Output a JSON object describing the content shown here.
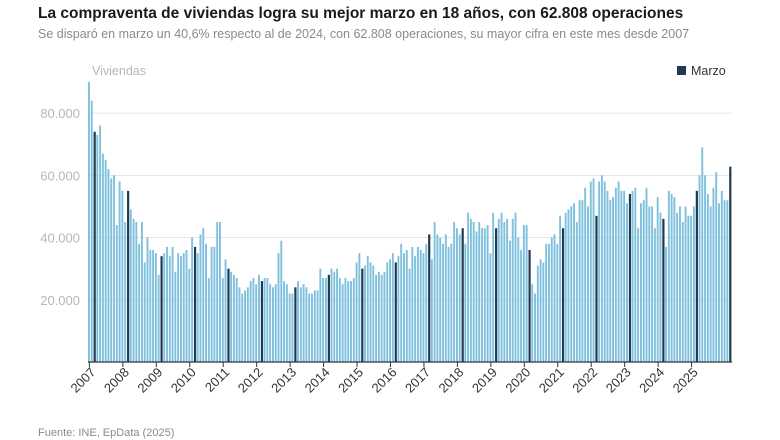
{
  "header": {
    "title": "La compraventa de viviendas logra su mejor marzo en 18 años, con 62.808 operaciones",
    "subtitle": "Se disparó en marzo un 40,6% respecto al de 2024, con 62.808 operaciones, su mayor cifra en este mes desde 2007"
  },
  "footer": {
    "source": "Fuente: INE, EpData (2025)"
  },
  "colors": {
    "bar": "#7ec0dd",
    "march_bar": "#1d3a52",
    "grid": "#e6e6e6",
    "axis": "#333333"
  },
  "chart_data": {
    "type": "bar",
    "ylabel": "Viviendas",
    "ylim": [
      0,
      90000
    ],
    "yticks": [
      20000,
      40000,
      60000,
      80000
    ],
    "ytick_labels": [
      "20.000",
      "40.000",
      "60.000",
      "80.000"
    ],
    "xticks": [
      "2007",
      "2008",
      "2009",
      "2010",
      "2011",
      "2012",
      "2013",
      "2014",
      "2015",
      "2016",
      "2017",
      "2018",
      "2019",
      "2020",
      "2021",
      "2022",
      "2023",
      "2024",
      "2025"
    ],
    "legend": {
      "label": "Marzo",
      "position": "top-right"
    },
    "grid": true,
    "series": [
      {
        "name": "Viviendas",
        "start": "2007-01",
        "frequency": "monthly",
        "highlight": "Marzo",
        "values": [
          90000,
          84000,
          74000,
          73000,
          76000,
          67000,
          65000,
          62000,
          59000,
          60000,
          44000,
          58000,
          55000,
          45000,
          55000,
          49000,
          46000,
          45000,
          38000,
          45000,
          32000,
          40000,
          36000,
          36000,
          35000,
          28000,
          34000,
          35000,
          37000,
          34000,
          37000,
          29000,
          35000,
          34000,
          35000,
          36000,
          30000,
          40000,
          37000,
          35000,
          41000,
          43000,
          38000,
          27000,
          37000,
          37000,
          45000,
          45000,
          27000,
          33000,
          30000,
          29000,
          28000,
          27000,
          24000,
          22000,
          23000,
          24000,
          26000,
          27000,
          25000,
          28000,
          26000,
          27000,
          27000,
          25000,
          24000,
          25000,
          35000,
          39000,
          26000,
          25000,
          22000,
          22000,
          24000,
          26000,
          24000,
          25000,
          24000,
          22000,
          22000,
          23000,
          23000,
          30000,
          27000,
          27000,
          28000,
          30000,
          29000,
          30000,
          27000,
          25000,
          27000,
          26000,
          26000,
          27000,
          32000,
          35000,
          30000,
          31000,
          34000,
          32000,
          31000,
          28000,
          29000,
          28000,
          29000,
          32000,
          33000,
          35000,
          32000,
          34000,
          38000,
          35000,
          36000,
          30000,
          37000,
          34000,
          37000,
          36000,
          35000,
          38000,
          41000,
          33000,
          45000,
          41000,
          40000,
          38000,
          41000,
          37000,
          38000,
          45000,
          43000,
          41000,
          43000,
          38000,
          48000,
          46000,
          45000,
          42000,
          45000,
          43000,
          43000,
          44000,
          35000,
          48000,
          43000,
          46000,
          48000,
          45000,
          46000,
          39000,
          46000,
          48000,
          40000,
          36000,
          44000,
          44000,
          36000,
          25000,
          22000,
          31000,
          33000,
          32000,
          38000,
          38000,
          40000,
          41000,
          38000,
          47000,
          43000,
          48000,
          49000,
          50000,
          51000,
          45000,
          52000,
          52000,
          56000,
          50000,
          58000,
          59000,
          47000,
          58000,
          60000,
          58000,
          55000,
          52000,
          53000,
          56000,
          58000,
          55000,
          55000,
          51000,
          54000,
          55000,
          56000,
          43000,
          51000,
          52000,
          56000,
          50000,
          50000,
          43000,
          53000,
          48000,
          46000,
          37000,
          55000,
          54000,
          53000,
          48000,
          50000,
          45000,
          50000,
          47000,
          47000,
          50000,
          55000,
          60000,
          69000,
          60000,
          54000,
          50000,
          56000,
          61000,
          51000,
          55000,
          52000,
          52000,
          62808
        ]
      }
    ]
  }
}
